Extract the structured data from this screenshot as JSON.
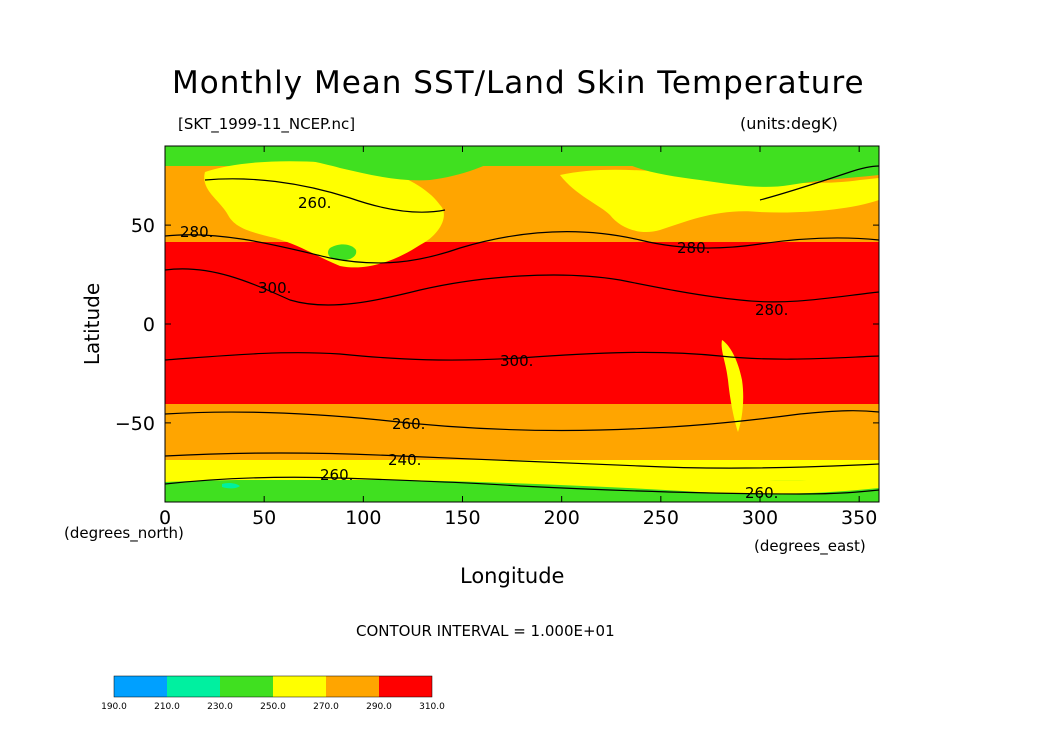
{
  "chart_data": {
    "type": "heatmap",
    "title": "Monthly Mean SST/Land Skin Temperature",
    "subtitle": "[SKT_1999-11_NCEP.nc]",
    "units_label": "(units:degK)",
    "xlabel": "Longitude",
    "ylabel": "Latitude",
    "x_units_label": "(degrees_east)",
    "y_units_label": "(degrees_north)",
    "xlim": [
      0,
      360
    ],
    "ylim": [
      -90,
      90
    ],
    "x_ticks": [
      0,
      50,
      100,
      150,
      200,
      250,
      300,
      350
    ],
    "y_ticks": [
      -50,
      0,
      50
    ],
    "contour_interval_text": "CONTOUR INTERVAL = 1.000E+01",
    "contour_labels": [
      "260.",
      "280.",
      "280.",
      "300.",
      "300.",
      "280.",
      "260.",
      "240.",
      "260.",
      "260."
    ],
    "colorbar": {
      "bounds": [
        190.0,
        210.0,
        230.0,
        250.0,
        270.0,
        290.0,
        310.0
      ],
      "labels": [
        "190.0",
        "210.0",
        "230.0",
        "250.0",
        "270.0",
        "290.0",
        "310.0"
      ],
      "colors": [
        "#00a0ff",
        "#00f0a0",
        "#40e020",
        "#ffff00",
        "#ffa500",
        "#ff0000"
      ]
    },
    "zonal_bands": [
      {
        "lat_min": 75,
        "lat_max": 90,
        "range": "250-270"
      },
      {
        "lat_min": 40,
        "lat_max": 75,
        "range": "270-290"
      },
      {
        "lat_min": -40,
        "lat_max": 40,
        "range": "290-310"
      },
      {
        "lat_min": -68,
        "lat_max": -40,
        "range": "270-290"
      },
      {
        "lat_min": -75,
        "lat_max": -68,
        "range": "250-270"
      },
      {
        "lat_min": -90,
        "lat_max": -75,
        "range": "230-250"
      }
    ]
  }
}
